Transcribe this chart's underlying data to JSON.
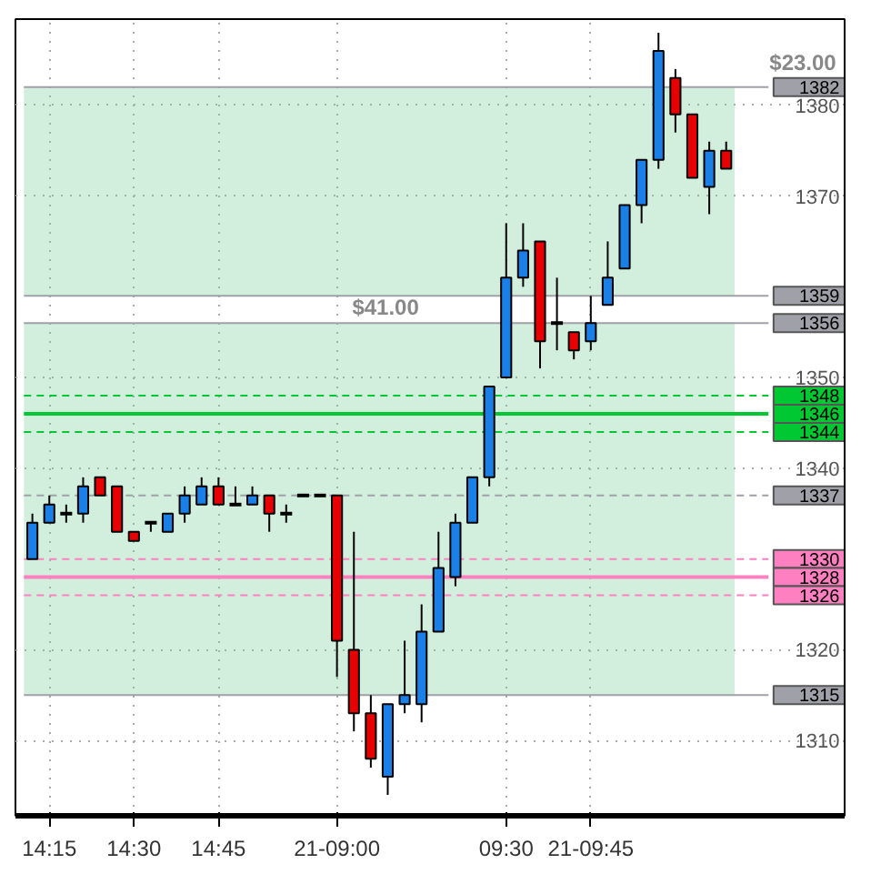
{
  "chart_data": {
    "type": "candlestick",
    "categories": [
      null,
      "14:15",
      null,
      null,
      null,
      null,
      "14:30",
      null,
      null,
      null,
      null,
      "14:45",
      null,
      null,
      null,
      null,
      null,
      null,
      "21-09:00",
      null,
      null,
      null,
      null,
      null,
      null,
      null,
      null,
      null,
      "09:30",
      null,
      null,
      null,
      null,
      "21-09:45",
      null,
      null,
      null,
      null,
      null,
      null,
      null,
      null
    ],
    "ohlc": [
      [
        1330,
        1335,
        1330,
        1334
      ],
      [
        1334,
        1337,
        1334,
        1336
      ],
      [
        1335,
        1336,
        1334,
        1335
      ],
      [
        1335,
        1339,
        1334,
        1338
      ],
      [
        1339,
        1339,
        1337,
        1337
      ],
      [
        1338,
        1338,
        1333,
        1333
      ],
      [
        1333,
        1333,
        1332,
        1332
      ],
      [
        1334,
        1334,
        1333,
        1334
      ],
      [
        1333,
        1335,
        1333,
        1335
      ],
      [
        1335,
        1338,
        1334,
        1337
      ],
      [
        1336,
        1339,
        1336,
        1338
      ],
      [
        1338,
        1339,
        1336,
        1336
      ],
      [
        1336,
        1338,
        1336,
        1336
      ],
      [
        1336,
        1338,
        1336,
        1337
      ],
      [
        1337,
        1337,
        1333,
        1335
      ],
      [
        1335,
        1336,
        1334,
        1335
      ],
      [
        1337,
        1337,
        1337,
        1337
      ],
      [
        1337,
        1337,
        1337,
        1337
      ],
      [
        1337,
        1337,
        1317,
        1321
      ],
      [
        1320,
        1333,
        1311,
        1313
      ],
      [
        1313,
        1315,
        1307,
        1308
      ],
      [
        1306,
        1314,
        1304,
        1314
      ],
      [
        1314,
        1321,
        1313,
        1315
      ],
      [
        1314,
        1325,
        1312,
        1322
      ],
      [
        1322,
        1333,
        1322,
        1329
      ],
      [
        1328,
        1335,
        1327,
        1334
      ],
      [
        1334,
        1339,
        1334,
        1339
      ],
      [
        1339,
        1349,
        1338,
        1349
      ],
      [
        1350,
        1367,
        1350,
        1361
      ],
      [
        1361,
        1367,
        1360,
        1364
      ],
      [
        1365,
        1365,
        1351,
        1354
      ],
      [
        1356,
        1361,
        1353,
        1356
      ],
      [
        1355,
        1355,
        1352,
        1353
      ],
      [
        1354,
        1359,
        1353,
        1356
      ],
      [
        1358,
        1365,
        1358,
        1361
      ],
      [
        1362,
        1369,
        1362,
        1369
      ],
      [
        1369,
        1374,
        1367,
        1374
      ],
      [
        1374,
        1388,
        1373,
        1386
      ],
      [
        1383,
        1384,
        1377,
        1379
      ],
      [
        1379,
        1379,
        1372,
        1372
      ],
      [
        1371,
        1376,
        1368,
        1375
      ],
      [
        1375,
        1376,
        1373,
        1373
      ]
    ],
    "ylim": [
      1301.7,
      1389.5
    ],
    "yticks": [
      1310,
      1320,
      1340,
      1350,
      1370,
      1380
    ],
    "grid": true,
    "ref_lines": [
      {
        "axis": "y",
        "value": 1348,
        "label": "1348",
        "color": "#00c832",
        "line_style": "dashed"
      },
      {
        "axis": "y",
        "value": 1346,
        "label": "1346",
        "color": "#00c832",
        "line_style": "solid"
      },
      {
        "axis": "y",
        "value": 1344,
        "label": "1344",
        "color": "#00c832",
        "line_style": "dashed"
      },
      {
        "axis": "y",
        "value": 1337,
        "label": "1337",
        "color": "#a0a0a8",
        "line_style": "dashed"
      },
      {
        "axis": "y",
        "value": 1330,
        "label": "1330",
        "color": "#ff80c0",
        "line_style": "dashed"
      },
      {
        "axis": "y",
        "value": 1328,
        "label": "1328",
        "color": "#ff80c0",
        "line_style": "solid"
      },
      {
        "axis": "y",
        "value": 1326,
        "label": "1326",
        "color": "#ff80c0",
        "line_style": "dashed"
      },
      {
        "axis": "y",
        "value": 1382,
        "label": "1382",
        "color": "#a0a0a8",
        "line_style": "solid"
      },
      {
        "axis": "y",
        "value": 1359,
        "label": "1359",
        "color": "#a0a0a8",
        "line_style": "solid"
      },
      {
        "axis": "y",
        "value": 1356,
        "label": "1356",
        "color": "#a0a0a8",
        "line_style": "solid"
      },
      {
        "axis": "y",
        "value": 1315,
        "label": "1315",
        "color": "#a0a0a8",
        "line_style": "solid"
      }
    ],
    "bands": [
      {
        "axis": "y",
        "from": 1315,
        "to": 1356,
        "label": "$41.00",
        "color": "#7fd0a0"
      },
      {
        "axis": "y",
        "from": 1359,
        "to": 1382,
        "label": "$23.00",
        "color": "#7fd0a0"
      }
    ]
  }
}
